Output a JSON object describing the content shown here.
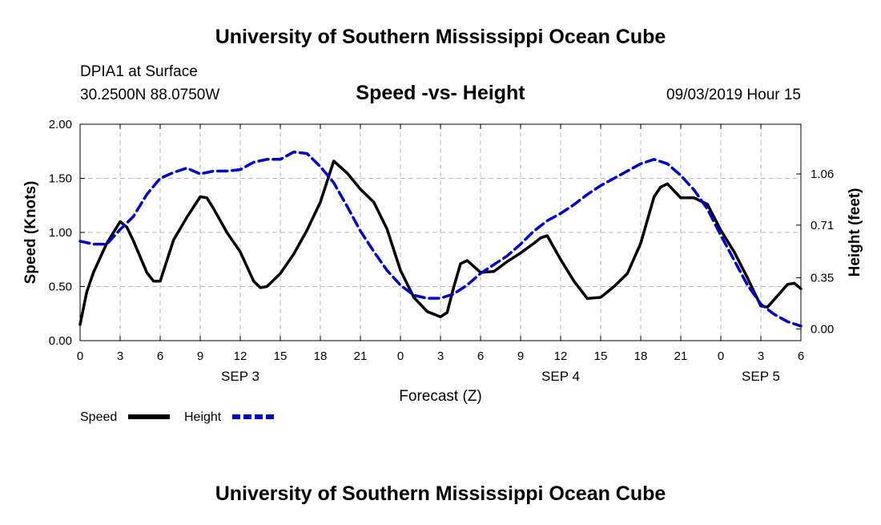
{
  "header": {
    "title_top": "University of Southern Mississippi Ocean Cube",
    "station": "DPIA1 at Surface",
    "location": "30.2500N 88.0750W",
    "subtitle": "Speed -vs- Height",
    "datetime": "09/03/2019 Hour 15"
  },
  "footer": {
    "title_bottom": "University of Southern Mississippi Ocean Cube"
  },
  "legend": {
    "speed_label": "Speed",
    "height_label": "Height"
  },
  "colors": {
    "speed": "#000000",
    "height": "#0000cc",
    "grid": "#bbbbbb"
  },
  "chart_data": {
    "type": "line",
    "title": "Speed -vs- Height",
    "xlabel": "Forecast (Z)",
    "ylabel": "Speed (Knots)",
    "ylabel_right": "Height (feet)",
    "x_unit": "hours from SEP 3 00Z",
    "xlim": [
      0,
      54
    ],
    "x_tick_values": [
      0,
      3,
      6,
      9,
      12,
      15,
      18,
      21,
      24,
      27,
      30,
      33,
      36,
      39,
      42,
      45,
      48,
      51,
      54
    ],
    "x_tick_labels": [
      "0",
      "3",
      "6",
      "9",
      "12",
      "15",
      "18",
      "21",
      "0",
      "3",
      "6",
      "9",
      "12",
      "15",
      "18",
      "21",
      "0",
      "3",
      "6"
    ],
    "day_labels": [
      {
        "at": 12,
        "label": "SEP 3"
      },
      {
        "at": 36,
        "label": "SEP 4"
      },
      {
        "at": 51,
        "label": "SEP 5"
      }
    ],
    "ylim": [
      0,
      2.0
    ],
    "y_ticks": [
      "0.00",
      "0.50",
      "1.00",
      "1.50",
      "2.00"
    ],
    "ylim_right": [
      -0.08,
      1.4
    ],
    "y_ticks_right": [
      "0.00",
      "0.35",
      "0.71",
      "1.06"
    ],
    "grid": true,
    "legend_position": "bottom-left",
    "series": [
      {
        "name": "Speed",
        "axis": "left",
        "style": "solid",
        "x": [
          0,
          0.5,
          1,
          2,
          3,
          3.5,
          4,
          5,
          5.5,
          6,
          7,
          8,
          9,
          9.5,
          10,
          11,
          12,
          13,
          13.5,
          14,
          15,
          16,
          17,
          18,
          19,
          20,
          21,
          22,
          23,
          24,
          25,
          26,
          27,
          27.5,
          28,
          28.5,
          29,
          30,
          31,
          32,
          33,
          34,
          34.5,
          35,
          36,
          37,
          38,
          39,
          40,
          41,
          42,
          43,
          43.5,
          44,
          45,
          46,
          47,
          48,
          49,
          50,
          51,
          51.5,
          52,
          53,
          53.5,
          54
        ],
        "y": [
          0.15,
          0.45,
          0.63,
          0.9,
          1.1,
          1.05,
          0.92,
          0.63,
          0.55,
          0.55,
          0.93,
          1.14,
          1.33,
          1.32,
          1.22,
          1.0,
          0.82,
          0.55,
          0.49,
          0.5,
          0.62,
          0.8,
          1.02,
          1.28,
          1.66,
          1.55,
          1.4,
          1.28,
          1.03,
          0.65,
          0.4,
          0.27,
          0.22,
          0.26,
          0.5,
          0.71,
          0.74,
          0.63,
          0.64,
          0.73,
          0.81,
          0.9,
          0.95,
          0.97,
          0.75,
          0.55,
          0.39,
          0.4,
          0.5,
          0.62,
          0.9,
          1.33,
          1.42,
          1.45,
          1.32,
          1.32,
          1.26,
          1.02,
          0.82,
          0.58,
          0.32,
          0.31,
          0.38,
          0.52,
          0.53,
          0.48
        ]
      },
      {
        "name": "Height",
        "axis": "right",
        "style": "dashed",
        "x": [
          0,
          1,
          2,
          3,
          4,
          5,
          6,
          7,
          8,
          9,
          10,
          11,
          12,
          13,
          14,
          15,
          16,
          17,
          18,
          19,
          20,
          21,
          22,
          23,
          24,
          25,
          26,
          27,
          28,
          29,
          30,
          31,
          32,
          33,
          34,
          35,
          36,
          37,
          38,
          39,
          40,
          41,
          42,
          43,
          44,
          45,
          46,
          47,
          48,
          49,
          50,
          51,
          52,
          53,
          54
        ],
        "y": [
          0.6,
          0.58,
          0.58,
          0.68,
          0.77,
          0.92,
          1.03,
          1.07,
          1.1,
          1.06,
          1.08,
          1.08,
          1.09,
          1.14,
          1.16,
          1.16,
          1.21,
          1.2,
          1.11,
          1.0,
          0.84,
          0.67,
          0.53,
          0.4,
          0.3,
          0.23,
          0.21,
          0.21,
          0.24,
          0.3,
          0.38,
          0.44,
          0.5,
          0.58,
          0.67,
          0.74,
          0.79,
          0.85,
          0.92,
          0.98,
          1.03,
          1.08,
          1.13,
          1.16,
          1.13,
          1.05,
          0.95,
          0.82,
          0.64,
          0.47,
          0.3,
          0.17,
          0.1,
          0.05,
          0.02
        ]
      }
    ]
  }
}
